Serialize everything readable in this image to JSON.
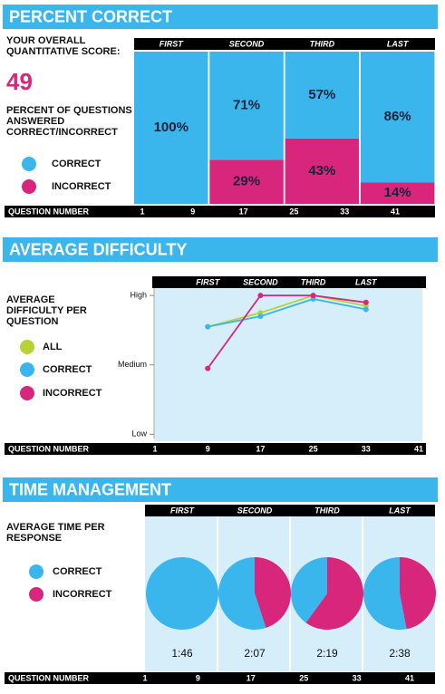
{
  "chart_data": [
    {
      "type": "stacked-bar",
      "title": "PERCENT CORRECT",
      "score_label": "YOUR OVERALL QUANTITATIVE SCORE:",
      "score": 49,
      "subtitle": "PERCENT OF QUESTIONS ANSWERED CORRECT/INCORRECT",
      "categories": [
        "FIRST",
        "SECOND",
        "THIRD",
        "LAST"
      ],
      "series": [
        {
          "name": "CORRECT",
          "color": "#3bb6ec",
          "values": [
            100,
            71,
            57,
            86
          ],
          "value_labels": [
            "100%",
            "71%",
            "57%",
            "86%"
          ]
        },
        {
          "name": "INCORRECT",
          "color": "#d8267c",
          "values": [
            0,
            29,
            43,
            14
          ],
          "value_labels": [
            "0%",
            "29%",
            "43%",
            "14%"
          ]
        }
      ],
      "ylim": [
        0,
        100
      ],
      "x_label": "QUESTION NUMBER",
      "xlim": [
        1,
        41
      ],
      "xticks": [
        1,
        9,
        17,
        25,
        33,
        41
      ]
    },
    {
      "type": "line",
      "title": "AVERAGE DIFFICULTY",
      "subtitle": "AVERAGE DIFFICULTY PER QUESTION",
      "categories": [
        "FIRST",
        "SECOND",
        "THIRD",
        "LAST"
      ],
      "x": [
        9,
        17,
        25,
        33
      ],
      "series": [
        {
          "name": "ALL",
          "color": "#b6d234",
          "values": [
            1.55,
            1.75,
            2.0,
            1.85
          ]
        },
        {
          "name": "CORRECT",
          "color": "#3bb6ec",
          "values": [
            1.55,
            1.7,
            1.95,
            1.8
          ]
        },
        {
          "name": "INCORRECT",
          "color": "#d8267c",
          "values": [
            0.95,
            2.0,
            2.0,
            1.9
          ]
        }
      ],
      "ylim": [
        -0.1,
        2.25
      ],
      "yticks": [
        {
          "value": 0,
          "label": "Low"
        },
        {
          "value": 1,
          "label": "Medium"
        },
        {
          "value": 2,
          "label": "High"
        }
      ],
      "x_label": "QUESTION NUMBER",
      "xlim": [
        1,
        41
      ],
      "xticks": [
        1,
        9,
        17,
        25,
        33,
        41
      ]
    },
    {
      "type": "pie",
      "title": "TIME MANAGEMENT",
      "subtitle": "AVERAGE TIME PER RESPONSE",
      "categories": [
        "FIRST",
        "SECOND",
        "THIRD",
        "LAST"
      ],
      "series": [
        {
          "name": "CORRECT",
          "color": "#3bb6ec",
          "values": [
            100,
            55,
            40,
            53
          ]
        },
        {
          "name": "INCORRECT",
          "color": "#d8267c",
          "values": [
            0,
            45,
            60,
            47
          ]
        }
      ],
      "times": [
        "1:46",
        "2:07",
        "2:19",
        "2:38"
      ],
      "x_label": "QUESTION NUMBER",
      "xlim": [
        1,
        41
      ],
      "xticks": [
        1,
        9,
        17,
        25,
        33,
        41
      ]
    }
  ]
}
